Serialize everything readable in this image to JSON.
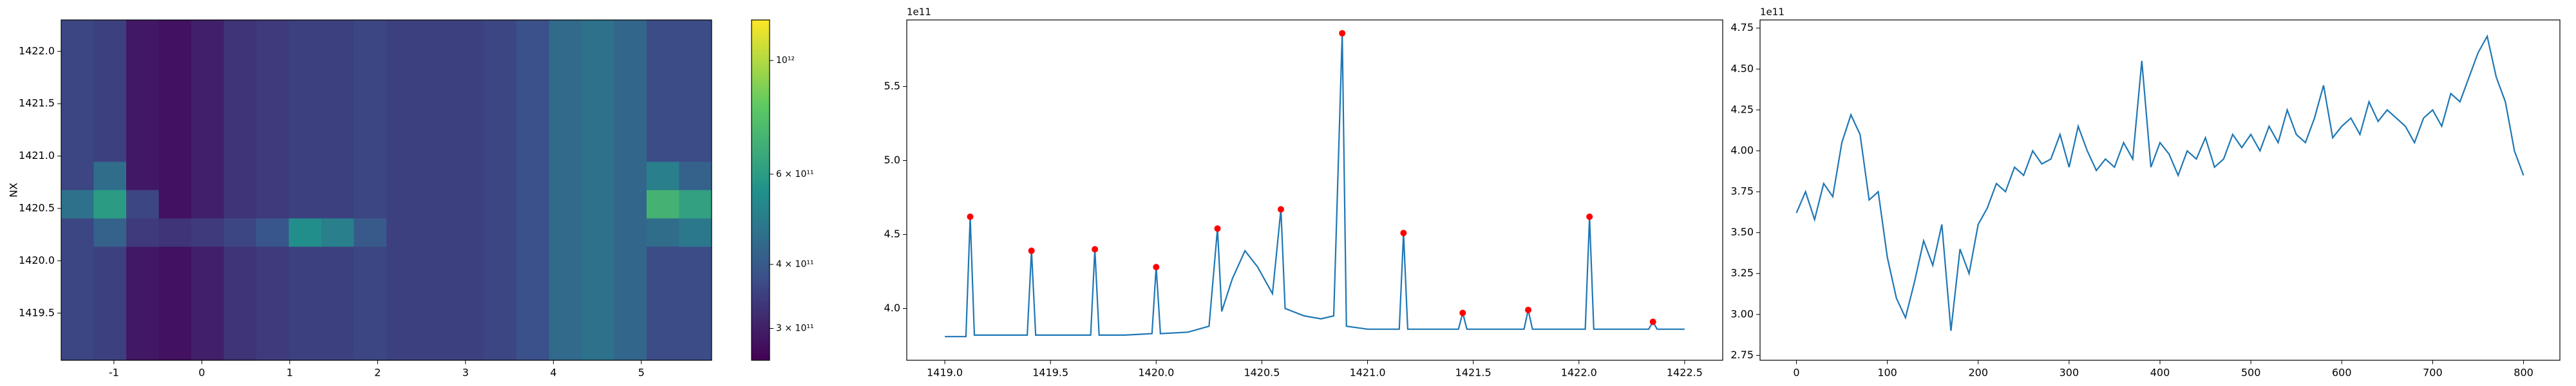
{
  "chart_data": [
    {
      "type": "heatmap",
      "ylabel": "NX",
      "colormap": "viridis",
      "color_scale": "log",
      "xlim": [
        -1.6,
        5.8
      ],
      "ylim": [
        1419.05,
        1422.3
      ],
      "xticks": [
        -1,
        0,
        1,
        2,
        3,
        4,
        5
      ],
      "yticks": [
        1419.5,
        {
          "value": 1420.0,
          "label": "1420.0"
        },
        1420.5,
        {
          "value": 1421.0,
          "label": "1421.0"
        },
        1421.5,
        {
          "value": 1422.0,
          "label": "1422.0"
        }
      ],
      "clim": [
        260000000000.0,
        1200000000000.0
      ],
      "cticks": [
        {
          "value": 300000000000.0,
          "label": "3 × 10¹¹"
        },
        {
          "value": 400000000000.0,
          "label": "4 × 10¹¹"
        },
        {
          "value": 600000000000.0,
          "label": "6 × 10¹¹"
        },
        {
          "value": 1000000000000.0,
          "label": "10¹²"
        }
      ],
      "z": [
        [
          360000000000.0,
          350000000000.0,
          290000000000.0,
          280000000000.0,
          300000000000.0,
          330000000000.0,
          340000000000.0,
          350000000000.0,
          350000000000.0,
          360000000000.0,
          350000000000.0,
          350000000000.0,
          350000000000.0,
          360000000000.0,
          380000000000.0,
          440000000000.0,
          460000000000.0,
          430000000000.0,
          370000000000.0,
          370000000000.0
        ],
        [
          360000000000.0,
          350000000000.0,
          290000000000.0,
          280000000000.0,
          300000000000.0,
          330000000000.0,
          340000000000.0,
          350000000000.0,
          350000000000.0,
          360000000000.0,
          350000000000.0,
          350000000000.0,
          350000000000.0,
          360000000000.0,
          380000000000.0,
          440000000000.0,
          460000000000.0,
          430000000000.0,
          370000000000.0,
          370000000000.0
        ],
        [
          360000000000.0,
          350000000000.0,
          290000000000.0,
          280000000000.0,
          300000000000.0,
          330000000000.0,
          340000000000.0,
          350000000000.0,
          350000000000.0,
          360000000000.0,
          350000000000.0,
          350000000000.0,
          350000000000.0,
          360000000000.0,
          380000000000.0,
          440000000000.0,
          460000000000.0,
          430000000000.0,
          370000000000.0,
          370000000000.0
        ],
        [
          360000000000.0,
          350000000000.0,
          290000000000.0,
          280000000000.0,
          300000000000.0,
          330000000000.0,
          340000000000.0,
          350000000000.0,
          350000000000.0,
          360000000000.0,
          350000000000.0,
          350000000000.0,
          350000000000.0,
          360000000000.0,
          380000000000.0,
          440000000000.0,
          460000000000.0,
          430000000000.0,
          370000000000.0,
          370000000000.0
        ],
        [
          360000000000.0,
          350000000000.0,
          290000000000.0,
          280000000000.0,
          300000000000.0,
          330000000000.0,
          340000000000.0,
          350000000000.0,
          350000000000.0,
          360000000000.0,
          350000000000.0,
          350000000000.0,
          350000000000.0,
          360000000000.0,
          380000000000.0,
          440000000000.0,
          460000000000.0,
          430000000000.0,
          370000000000.0,
          370000000000.0
        ],
        [
          360000000000.0,
          450000000000.0,
          290000000000.0,
          280000000000.0,
          300000000000.0,
          330000000000.0,
          340000000000.0,
          350000000000.0,
          350000000000.0,
          360000000000.0,
          350000000000.0,
          350000000000.0,
          350000000000.0,
          360000000000.0,
          380000000000.0,
          440000000000.0,
          460000000000.0,
          430000000000.0,
          500000000000.0,
          420000000000.0
        ],
        [
          460000000000.0,
          600000000000.0,
          360000000000.0,
          280000000000.0,
          300000000000.0,
          330000000000.0,
          340000000000.0,
          350000000000.0,
          350000000000.0,
          360000000000.0,
          350000000000.0,
          350000000000.0,
          350000000000.0,
          360000000000.0,
          380000000000.0,
          440000000000.0,
          460000000000.0,
          430000000000.0,
          700000000000.0,
          620000000000.0
        ],
        [
          360000000000.0,
          420000000000.0,
          340000000000.0,
          330000000000.0,
          340000000000.0,
          360000000000.0,
          390000000000.0,
          550000000000.0,
          500000000000.0,
          400000000000.0,
          350000000000.0,
          350000000000.0,
          350000000000.0,
          360000000000.0,
          380000000000.0,
          440000000000.0,
          460000000000.0,
          430000000000.0,
          450000000000.0,
          480000000000.0
        ],
        [
          360000000000.0,
          350000000000.0,
          290000000000.0,
          280000000000.0,
          300000000000.0,
          330000000000.0,
          340000000000.0,
          350000000000.0,
          350000000000.0,
          360000000000.0,
          350000000000.0,
          350000000000.0,
          350000000000.0,
          360000000000.0,
          380000000000.0,
          440000000000.0,
          460000000000.0,
          430000000000.0,
          370000000000.0,
          370000000000.0
        ],
        [
          360000000000.0,
          350000000000.0,
          290000000000.0,
          280000000000.0,
          300000000000.0,
          330000000000.0,
          340000000000.0,
          350000000000.0,
          350000000000.0,
          360000000000.0,
          350000000000.0,
          350000000000.0,
          350000000000.0,
          360000000000.0,
          380000000000.0,
          440000000000.0,
          460000000000.0,
          430000000000.0,
          370000000000.0,
          370000000000.0
        ],
        [
          360000000000.0,
          350000000000.0,
          290000000000.0,
          280000000000.0,
          300000000000.0,
          330000000000.0,
          340000000000.0,
          350000000000.0,
          350000000000.0,
          360000000000.0,
          350000000000.0,
          350000000000.0,
          350000000000.0,
          360000000000.0,
          380000000000.0,
          440000000000.0,
          460000000000.0,
          430000000000.0,
          370000000000.0,
          370000000000.0
        ],
        [
          360000000000.0,
          350000000000.0,
          290000000000.0,
          280000000000.0,
          300000000000.0,
          330000000000.0,
          340000000000.0,
          350000000000.0,
          350000000000.0,
          360000000000.0,
          350000000000.0,
          350000000000.0,
          350000000000.0,
          360000000000.0,
          380000000000.0,
          440000000000.0,
          460000000000.0,
          430000000000.0,
          370000000000.0,
          370000000000.0
        ]
      ]
    },
    {
      "type": "line",
      "color": "#1f77b4",
      "offset_label": "1e11",
      "xlim": [
        1418.82,
        1422.68
      ],
      "ylim": [
        3.65,
        5.95
      ],
      "xticks": [
        {
          "value": 1419.0,
          "label": "1419.0"
        },
        1419.5,
        {
          "value": 1420.0,
          "label": "1420.0"
        },
        1420.5,
        {
          "value": 1421.0,
          "label": "1421.0"
        },
        1421.5,
        {
          "value": 1422.0,
          "label": "1422.0"
        },
        1422.5
      ],
      "yticks": [
        {
          "value": 4.0,
          "label": "4.0"
        },
        4.5,
        {
          "value": 5.0,
          "label": "5.0"
        },
        5.5
      ],
      "x": [
        1419.0,
        1419.1,
        1419.12,
        1419.14,
        1419.25,
        1419.39,
        1419.41,
        1419.43,
        1419.55,
        1419.69,
        1419.71,
        1419.73,
        1419.85,
        1419.98,
        1420.0,
        1420.02,
        1420.15,
        1420.25,
        1420.29,
        1420.31,
        1420.36,
        1420.42,
        1420.48,
        1420.55,
        1420.59,
        1420.61,
        1420.7,
        1420.78,
        1420.84,
        1420.88,
        1420.9,
        1421.0,
        1421.15,
        1421.17,
        1421.19,
        1421.3,
        1421.43,
        1421.45,
        1421.47,
        1421.6,
        1421.74,
        1421.76,
        1421.78,
        1421.9,
        1422.03,
        1422.05,
        1422.07,
        1422.2,
        1422.33,
        1422.35,
        1422.37,
        1422.5
      ],
      "values": [
        3.81,
        3.81,
        4.62,
        3.82,
        3.82,
        3.82,
        4.39,
        3.82,
        3.82,
        3.82,
        4.4,
        3.82,
        3.82,
        3.83,
        4.28,
        3.83,
        3.84,
        3.88,
        4.54,
        3.98,
        4.2,
        4.39,
        4.28,
        4.1,
        4.67,
        4.0,
        3.95,
        3.93,
        3.95,
        5.86,
        3.88,
        3.86,
        3.86,
        4.51,
        3.86,
        3.86,
        3.86,
        3.97,
        3.86,
        3.86,
        3.86,
        3.99,
        3.86,
        3.86,
        3.86,
        4.62,
        3.86,
        3.86,
        3.86,
        3.91,
        3.86,
        3.86
      ],
      "peaks": {
        "color": "#ff0000",
        "x": [
          1419.12,
          1419.41,
          1419.71,
          1420.0,
          1420.29,
          1420.59,
          1420.88,
          1421.17,
          1421.45,
          1421.76,
          1422.05,
          1422.35
        ],
        "values": [
          4.62,
          4.39,
          4.4,
          4.28,
          4.54,
          4.67,
          5.86,
          4.51,
          3.97,
          3.99,
          4.62,
          3.91
        ]
      }
    },
    {
      "type": "line",
      "color": "#1f77b4",
      "offset_label": "1e11",
      "xlim": [
        -40,
        840
      ],
      "ylim": [
        2.72,
        4.8
      ],
      "xticks": [
        0,
        100,
        200,
        300,
        400,
        500,
        600,
        700,
        800
      ],
      "yticks": [
        2.75,
        {
          "value": 3.0,
          "label": "3.00"
        },
        3.25,
        {
          "value": 3.5,
          "label": "3.50"
        },
        3.75,
        {
          "value": 4.0,
          "label": "4.00"
        },
        4.25,
        {
          "value": 4.5,
          "label": "4.50"
        },
        4.75
      ],
      "x": [
        0,
        10,
        20,
        30,
        40,
        50,
        60,
        70,
        80,
        90,
        100,
        110,
        120,
        130,
        140,
        150,
        160,
        170,
        180,
        190,
        200,
        210,
        220,
        230,
        240,
        250,
        260,
        270,
        280,
        290,
        300,
        310,
        320,
        330,
        340,
        350,
        360,
        370,
        380,
        390,
        400,
        410,
        420,
        430,
        440,
        450,
        460,
        470,
        480,
        490,
        500,
        510,
        520,
        530,
        540,
        550,
        560,
        570,
        580,
        590,
        600,
        610,
        620,
        630,
        640,
        650,
        660,
        670,
        680,
        690,
        700,
        710,
        720,
        730,
        740,
        750,
        760,
        770,
        780,
        790,
        800
      ],
      "values": [
        3.62,
        3.75,
        3.58,
        3.8,
        3.72,
        4.05,
        4.22,
        4.1,
        3.7,
        3.75,
        3.35,
        3.1,
        2.98,
        3.2,
        3.45,
        3.3,
        3.55,
        2.9,
        3.4,
        3.25,
        3.55,
        3.65,
        3.8,
        3.75,
        3.9,
        3.85,
        4.0,
        3.92,
        3.95,
        4.1,
        3.9,
        4.15,
        4.0,
        3.88,
        3.95,
        3.9,
        4.05,
        3.95,
        4.55,
        3.9,
        4.05,
        3.98,
        3.85,
        4.0,
        3.95,
        4.08,
        3.9,
        3.95,
        4.1,
        4.02,
        4.1,
        4.0,
        4.15,
        4.05,
        4.25,
        4.1,
        4.05,
        4.2,
        4.4,
        4.08,
        4.15,
        4.2,
        4.1,
        4.3,
        4.18,
        4.25,
        4.2,
        4.15,
        4.05,
        4.2,
        4.25,
        4.15,
        4.35,
        4.3,
        4.45,
        4.6,
        4.7,
        4.45,
        4.3,
        4.0,
        3.85
      ]
    }
  ]
}
